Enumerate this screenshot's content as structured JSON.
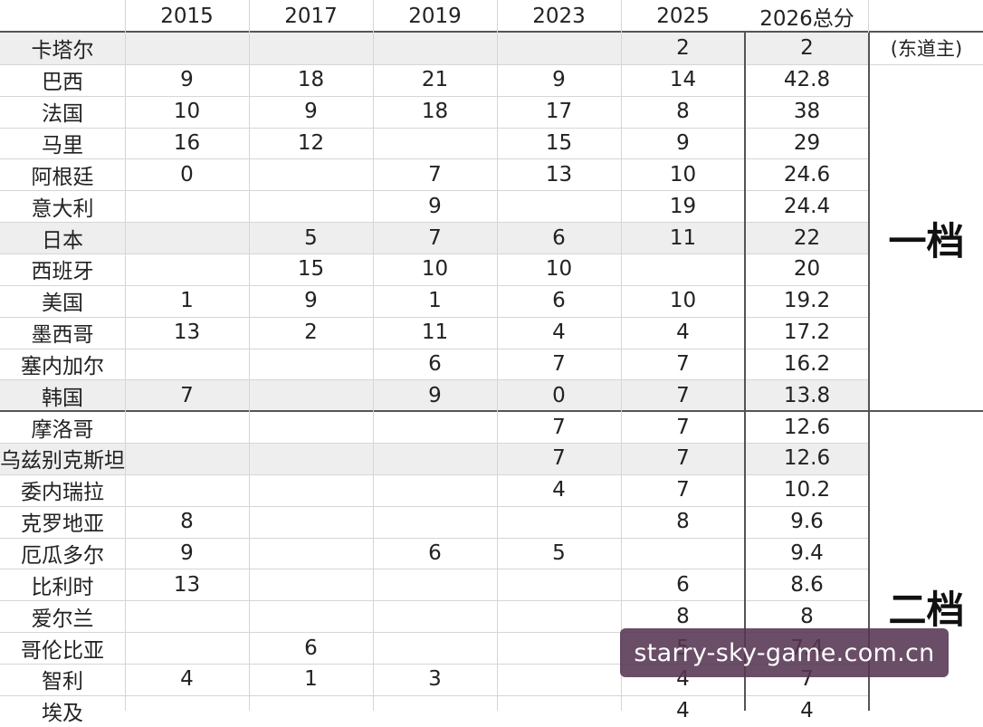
{
  "headers": [
    "",
    "2015",
    "2017",
    "2019",
    "2023",
    "2025",
    "2026总分"
  ],
  "rows": [
    {
      "name": "卡塔尔",
      "vals": [
        "",
        "",
        "",
        "",
        "2",
        "2"
      ],
      "shaded": true
    },
    {
      "name": "巴西",
      "vals": [
        "9",
        "18",
        "21",
        "9",
        "14",
        "42.8"
      ],
      "shaded": false
    },
    {
      "name": "法国",
      "vals": [
        "10",
        "9",
        "18",
        "17",
        "8",
        "38"
      ],
      "shaded": false
    },
    {
      "name": "马里",
      "vals": [
        "16",
        "12",
        "",
        "15",
        "9",
        "29"
      ],
      "shaded": false
    },
    {
      "name": "阿根廷",
      "vals": [
        "0",
        "",
        "7",
        "13",
        "10",
        "24.6"
      ],
      "shaded": false
    },
    {
      "name": "意大利",
      "vals": [
        "",
        "",
        "9",
        "",
        "19",
        "24.4"
      ],
      "shaded": false
    },
    {
      "name": "日本",
      "vals": [
        "",
        "5",
        "7",
        "6",
        "11",
        "22"
      ],
      "shaded": true
    },
    {
      "name": "西班牙",
      "vals": [
        "",
        "15",
        "10",
        "10",
        "",
        "20"
      ],
      "shaded": false
    },
    {
      "name": "美国",
      "vals": [
        "1",
        "9",
        "1",
        "6",
        "10",
        "19.2"
      ],
      "shaded": false
    },
    {
      "name": "墨西哥",
      "vals": [
        "13",
        "2",
        "11",
        "4",
        "4",
        "17.2"
      ],
      "shaded": false
    },
    {
      "name": "塞内加尔",
      "vals": [
        "",
        "",
        "6",
        "7",
        "7",
        "16.2"
      ],
      "shaded": false
    },
    {
      "name": "韩国",
      "vals": [
        "7",
        "",
        "9",
        "0",
        "7",
        "13.8"
      ],
      "shaded": true
    },
    {
      "name": "摩洛哥",
      "vals": [
        "",
        "",
        "",
        "7",
        "7",
        "12.6"
      ],
      "shaded": false
    },
    {
      "name": "乌兹别克斯坦",
      "vals": [
        "",
        "",
        "",
        "7",
        "7",
        "12.6"
      ],
      "shaded": true
    },
    {
      "name": "委内瑞拉",
      "vals": [
        "",
        "",
        "",
        "4",
        "7",
        "10.2"
      ],
      "shaded": false
    },
    {
      "name": "克罗地亚",
      "vals": [
        "8",
        "",
        "",
        "",
        "8",
        "9.6"
      ],
      "shaded": false
    },
    {
      "name": "厄瓜多尔",
      "vals": [
        "9",
        "",
        "6",
        "5",
        "",
        "9.4"
      ],
      "shaded": false
    },
    {
      "name": "比利时",
      "vals": [
        "13",
        "",
        "",
        "",
        "6",
        "8.6"
      ],
      "shaded": false
    },
    {
      "name": "爱尔兰",
      "vals": [
        "",
        "",
        "",
        "",
        "8",
        "8"
      ],
      "shaded": false
    },
    {
      "name": "哥伦比亚",
      "vals": [
        "",
        "6",
        "",
        "",
        "5",
        "7.4"
      ],
      "shaded": false
    },
    {
      "name": "智利",
      "vals": [
        "4",
        "1",
        "3",
        "",
        "4",
        "7"
      ],
      "shaded": false
    },
    {
      "name": "埃及",
      "vals": [
        "",
        "",
        "",
        "",
        "4",
        "4"
      ],
      "shaded": false
    }
  ],
  "host_note": "(东道主)",
  "tier1": "一档",
  "tier2": "二档",
  "watermark": "starry-sky-game.com.cn"
}
